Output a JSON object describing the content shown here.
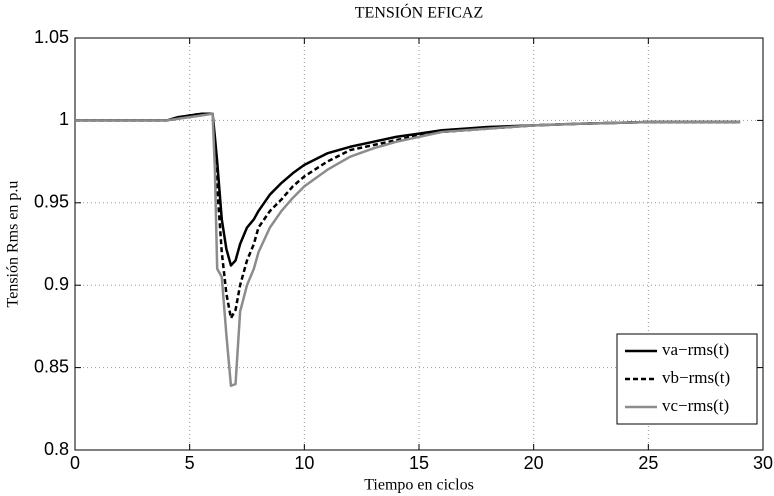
{
  "chart_data": {
    "type": "line",
    "title": "TENSIÓN EFICAZ",
    "xlabel": "Tiempo en ciclos",
    "ylabel": "Tensión Rms en p.u",
    "x": [
      0,
      4,
      4.5,
      5,
      5.5,
      6,
      6.1,
      6.2,
      6.4,
      6.6,
      6.8,
      7,
      7.2,
      7.5,
      7.8,
      8,
      8.5,
      9,
      9.5,
      10,
      11,
      12,
      13,
      14,
      15,
      16,
      18,
      20,
      22,
      25,
      29
    ],
    "series": [
      {
        "name": "va−rms(t)",
        "color": "#000000",
        "linestyle": "solid",
        "values": [
          1,
          1,
          1.002,
          1.003,
          1.004,
          1.004,
          0.99,
          0.975,
          0.94,
          0.922,
          0.912,
          0.915,
          0.925,
          0.935,
          0.94,
          0.945,
          0.955,
          0.962,
          0.968,
          0.973,
          0.98,
          0.984,
          0.987,
          0.99,
          0.992,
          0.994,
          0.996,
          0.997,
          0.998,
          0.999,
          0.999
        ]
      },
      {
        "name": "vb−rms(t)",
        "color": "#000000",
        "linestyle": "dashed",
        "values": [
          1,
          1,
          1.001,
          1.003,
          1.004,
          1.004,
          0.985,
          0.96,
          0.92,
          0.895,
          0.88,
          0.885,
          0.9,
          0.915,
          0.925,
          0.935,
          0.945,
          0.952,
          0.96,
          0.966,
          0.975,
          0.982,
          0.985,
          0.988,
          0.991,
          0.993,
          0.995,
          0.997,
          0.998,
          0.999,
          0.999
        ]
      },
      {
        "name": "vc−rms(t)",
        "color": "#8c8c8c",
        "linestyle": "solid",
        "values": [
          1,
          1,
          1.001,
          1.002,
          1.003,
          1.004,
          0.97,
          0.91,
          0.905,
          0.87,
          0.839,
          0.84,
          0.884,
          0.9,
          0.91,
          0.92,
          0.935,
          0.945,
          0.953,
          0.96,
          0.97,
          0.978,
          0.983,
          0.987,
          0.99,
          0.993,
          0.995,
          0.997,
          0.998,
          0.999,
          0.999
        ]
      }
    ],
    "xlim": [
      0,
      30
    ],
    "xticks": [
      0,
      5,
      10,
      15,
      20,
      25,
      30
    ],
    "ylim": [
      0.8,
      1.05
    ],
    "yticks": [
      0.8,
      0.85,
      0.9,
      0.95,
      1,
      1.05
    ],
    "grid": true,
    "legend": "lower right"
  }
}
